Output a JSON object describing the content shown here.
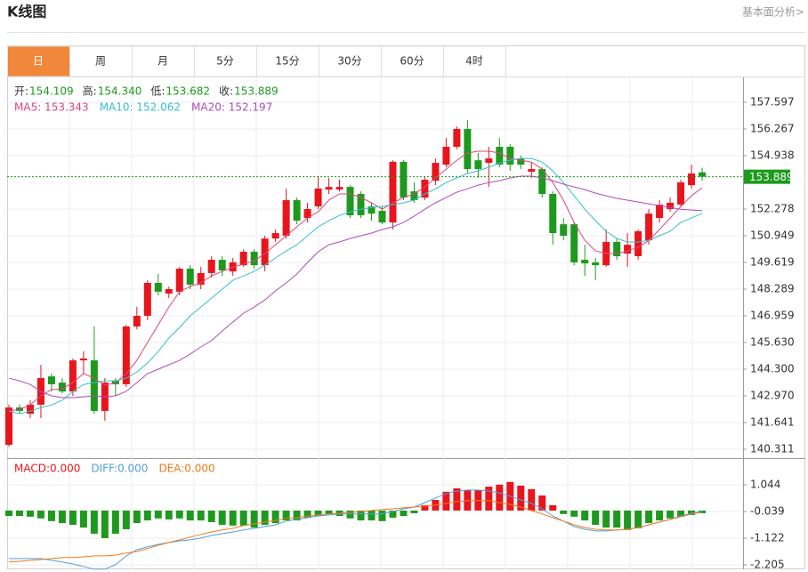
{
  "header": {
    "title": "K线图",
    "link": "基本面分析>"
  },
  "tabs": [
    "日",
    "周",
    "月",
    "5分",
    "15分",
    "30分",
    "60分",
    "4时"
  ],
  "active_tab": 0,
  "chart_data": [
    {
      "type": "candlestick",
      "up_color": "#e8151c",
      "down_color": "#1d9a1d",
      "grid": true,
      "ylim": [
        139.868,
        158.838
      ],
      "yticks": [
        157.597,
        156.267,
        154.938,
        152.278,
        150.949,
        149.619,
        148.289,
        146.959,
        {
          "value": 145.63,
          "label": "145.630"
        },
        {
          "value": 144.3,
          "label": "144.300"
        },
        {
          "value": 142.97,
          "label": "142.970"
        },
        141.641,
        140.311
      ],
      "info": {
        "labels": [
          "开:",
          "高:",
          "低:",
          "收:"
        ],
        "value_labels": [
          "154.109",
          "154.340",
          "153.682",
          "153.889"
        ]
      },
      "open": [
        140.53,
        142.39,
        142.08,
        142.53,
        143.94,
        143.63,
        143.19,
        144.74,
        144.74,
        142.22,
        143.72,
        143.55,
        146.43,
        146.96,
        148.6,
        148.07,
        148.16,
        149.31,
        148.51,
        149.09,
        149.75,
        149.17,
        149.48,
        150.15,
        149.48,
        150.81,
        150.95,
        152.72,
        151.83,
        152.41,
        153.25,
        153.25,
        153.38,
        153.03,
        152.41,
        152.19,
        151.61,
        154.63,
        153.16,
        152.85,
        153.69,
        154.49,
        155.38,
        156.27,
        154.71,
        154.58,
        155.38,
        155.38,
        154.8,
        154.14,
        154.27,
        153.03,
        151.52,
        151.52,
        149.75,
        149.62,
        149.48,
        150.64,
        150.06,
        149.93,
        150.72,
        151.83,
        152.28,
        152.5,
        153.47,
        154.109
      ],
      "high": [
        142.53,
        142.53,
        142.75,
        144.52,
        144.08,
        143.86,
        144.83,
        145.19,
        146.43,
        143.86,
        143.86,
        146.51,
        147.4,
        148.73,
        149.04,
        148.42,
        149.4,
        149.48,
        149.4,
        149.93,
        149.93,
        149.84,
        150.28,
        150.28,
        150.95,
        151.26,
        153.3,
        152.85,
        152.59,
        153.92,
        153.83,
        153.74,
        153.47,
        153.16,
        152.59,
        152.41,
        154.71,
        154.71,
        153.61,
        153.92,
        154.8,
        155.82,
        156.4,
        156.71,
        155.07,
        155.38,
        155.82,
        155.51,
        154.94,
        154.58,
        154.36,
        153.16,
        151.83,
        151.61,
        150.5,
        149.84,
        151.26,
        150.81,
        151.08,
        151.26,
        152.28,
        152.72,
        152.85,
        153.74,
        154.49,
        154.34
      ],
      "low": [
        140.44,
        142.08,
        141.86,
        141.86,
        143.19,
        143.1,
        142.97,
        144.08,
        142.08,
        141.73,
        142.97,
        143.41,
        146.29,
        146.74,
        147.98,
        147.84,
        147.98,
        148.29,
        148.29,
        148.86,
        148.95,
        148.95,
        149.4,
        149.31,
        149.17,
        150.64,
        150.81,
        151.52,
        151.61,
        152.28,
        153.03,
        153.16,
        151.83,
        151.83,
        151.7,
        151.52,
        151.26,
        152.72,
        152.59,
        152.72,
        153.47,
        154.36,
        155.25,
        154.05,
        153.83,
        153.38,
        154.36,
        154.18,
        154.27,
        153.83,
        152.85,
        150.5,
        150.72,
        149.48,
        148.95,
        148.73,
        149.4,
        149.75,
        149.4,
        149.75,
        150.5,
        151.61,
        152.14,
        152.37,
        153.3,
        153.682
      ],
      "close": [
        142.39,
        142.22,
        142.53,
        143.86,
        143.55,
        143.19,
        144.74,
        144.83,
        142.22,
        143.63,
        143.55,
        146.43,
        146.96,
        148.6,
        148.16,
        148.29,
        149.31,
        148.51,
        149.09,
        149.75,
        149.22,
        149.62,
        150.15,
        149.48,
        150.81,
        151.08,
        152.72,
        151.7,
        152.28,
        153.3,
        153.38,
        153.38,
        151.97,
        151.97,
        152.05,
        151.61,
        154.63,
        152.85,
        152.72,
        153.74,
        154.58,
        155.38,
        156.27,
        154.27,
        154.27,
        154.8,
        154.49,
        154.49,
        154.49,
        154.27,
        153.03,
        151.08,
        150.95,
        149.62,
        149.57,
        149.48,
        150.64,
        149.93,
        150.5,
        151.17,
        152.05,
        152.5,
        152.59,
        153.61,
        154.05,
        153.889
      ],
      "series": [
        {
          "name": "MA5: 153.343",
          "color": "#e0457b",
          "values": [
            142.21,
            142.3,
            142.52,
            142.97,
            143.28,
            143.32,
            143.63,
            144.08,
            143.85,
            143.5,
            143.63,
            144.08,
            144.74,
            145.63,
            146.51,
            147.4,
            148.15,
            148.42,
            148.6,
            148.95,
            149.17,
            149.39,
            149.53,
            149.7,
            150.06,
            150.5,
            150.95,
            151.39,
            151.83,
            152.14,
            152.72,
            153.03,
            153.03,
            152.85,
            152.59,
            152.27,
            152.59,
            152.85,
            153.03,
            153.38,
            153.83,
            154.27,
            154.71,
            155.07,
            155.16,
            155.16,
            155.07,
            154.8,
            154.71,
            154.62,
            154.27,
            153.6,
            152.72,
            151.61,
            150.72,
            150.19,
            150.06,
            150.06,
            150.19,
            150.37,
            150.72,
            151.26,
            151.83,
            152.41,
            152.94,
            153.343
          ]
        },
        {
          "name": "MA10: 152.062",
          "color": "#35bfd3",
          "values": [
            142.21,
            142.08,
            142.21,
            142.39,
            142.52,
            142.75,
            143.19,
            143.54,
            143.63,
            143.72,
            143.72,
            143.85,
            144.16,
            144.61,
            145.18,
            145.85,
            146.38,
            146.96,
            147.4,
            147.84,
            148.29,
            148.73,
            148.95,
            149.17,
            149.48,
            149.84,
            150.19,
            150.5,
            150.95,
            151.39,
            151.7,
            151.96,
            152.14,
            152.27,
            152.36,
            152.41,
            152.5,
            152.59,
            152.72,
            153.03,
            153.29,
            153.6,
            153.83,
            154.05,
            154.18,
            154.36,
            154.58,
            154.71,
            154.8,
            154.8,
            154.62,
            154.18,
            153.6,
            152.94,
            152.27,
            151.7,
            151.17,
            150.81,
            150.64,
            150.64,
            150.72,
            150.95,
            151.17,
            151.61,
            151.83,
            152.062
          ]
        },
        {
          "name": "MA20: 152.197",
          "color": "#b04bbb",
          "values": [
            143.85,
            143.72,
            143.54,
            143.19,
            142.97,
            142.88,
            142.88,
            142.92,
            142.97,
            142.92,
            142.97,
            143.19,
            143.63,
            144.08,
            144.3,
            144.52,
            144.74,
            145.05,
            145.41,
            145.72,
            146.2,
            146.65,
            147.09,
            147.4,
            147.75,
            148.2,
            148.6,
            149.04,
            149.62,
            150.15,
            150.5,
            150.64,
            150.81,
            150.95,
            151.08,
            151.26,
            151.39,
            151.61,
            151.92,
            152.27,
            152.59,
            152.85,
            153.12,
            153.29,
            153.47,
            153.6,
            153.69,
            153.83,
            153.92,
            153.92,
            153.83,
            153.69,
            153.52,
            153.38,
            153.25,
            153.07,
            152.94,
            152.81,
            152.72,
            152.63,
            152.54,
            152.45,
            152.36,
            152.27,
            152.23,
            152.197
          ]
        }
      ]
    },
    {
      "type": "macd",
      "down_color": "#1d9a1d",
      "grid": true,
      "ylim": [
        -2.386,
        2.127
      ],
      "yticks": [
        1.044,
        -0.039,
        -1.122,
        -2.205
      ],
      "series": [
        {
          "name": "MACD:0.000",
          "color": "#e8151c",
          "mark": "bar",
          "values": [
            -0.22,
            -0.22,
            -0.25,
            -0.32,
            -0.43,
            -0.51,
            -0.58,
            -0.69,
            -0.94,
            -1.12,
            -0.94,
            -0.76,
            -0.51,
            -0.4,
            -0.32,
            -0.36,
            -0.32,
            -0.4,
            -0.4,
            -0.47,
            -0.58,
            -0.61,
            -0.61,
            -0.69,
            -0.58,
            -0.51,
            -0.4,
            -0.4,
            -0.29,
            -0.22,
            -0.14,
            -0.22,
            -0.32,
            -0.4,
            -0.4,
            -0.43,
            -0.29,
            -0.22,
            -0.11,
            0.22,
            0.43,
            0.76,
            0.9,
            0.83,
            0.83,
            0.97,
            1.05,
            1.16,
            1.01,
            0.87,
            0.61,
            0.22,
            -0.14,
            -0.25,
            -0.4,
            -0.58,
            -0.69,
            -0.69,
            -0.79,
            -0.72,
            -0.51,
            -0.4,
            -0.32,
            -0.25,
            -0.18,
            -0.11
          ]
        },
        {
          "name": "DIFF:0.000",
          "color": "#4f9fe0",
          "mark": "line",
          "values": [
            -1.95,
            -1.95,
            -1.95,
            -1.95,
            -2.02,
            -2.09,
            -2.17,
            -2.27,
            -2.38,
            -2.38,
            -2.2,
            -1.84,
            -1.59,
            -1.48,
            -1.37,
            -1.3,
            -1.23,
            -1.19,
            -1.12,
            -1.01,
            -0.94,
            -0.87,
            -0.79,
            -0.72,
            -0.65,
            -0.58,
            -0.43,
            -0.36,
            -0.29,
            -0.22,
            -0.18,
            -0.14,
            -0.14,
            -0.14,
            -0.14,
            -0.14,
            -0.04,
            0.07,
            0.14,
            0.32,
            0.51,
            0.69,
            0.79,
            0.83,
            0.83,
            0.79,
            0.72,
            0.58,
            0.43,
            0.29,
            0.07,
            -0.22,
            -0.43,
            -0.65,
            -0.76,
            -0.83,
            -0.83,
            -0.79,
            -0.76,
            -0.69,
            -0.58,
            -0.47,
            -0.36,
            -0.22,
            -0.11,
            -0.04
          ]
        },
        {
          "name": "DEA:0.000",
          "color": "#f07a1a",
          "mark": "line",
          "values": [
            -2.09,
            -2.06,
            -2.02,
            -1.99,
            -1.95,
            -1.91,
            -1.91,
            -1.88,
            -1.84,
            -1.84,
            -1.81,
            -1.73,
            -1.66,
            -1.55,
            -1.41,
            -1.3,
            -1.19,
            -1.08,
            -0.97,
            -0.87,
            -0.79,
            -0.72,
            -0.61,
            -0.54,
            -0.47,
            -0.4,
            -0.32,
            -0.29,
            -0.22,
            -0.18,
            -0.14,
            -0.11,
            -0.07,
            -0.04,
            0,
            0.04,
            0.07,
            0.11,
            0.14,
            0.18,
            0.22,
            0.29,
            0.36,
            0.4,
            0.4,
            0.4,
            0.32,
            0.25,
            0.14,
            0,
            -0.14,
            -0.29,
            -0.43,
            -0.58,
            -0.69,
            -0.76,
            -0.79,
            -0.79,
            -0.76,
            -0.69,
            -0.58,
            -0.47,
            -0.36,
            -0.25,
            -0.14,
            -0.07
          ]
        }
      ]
    }
  ]
}
